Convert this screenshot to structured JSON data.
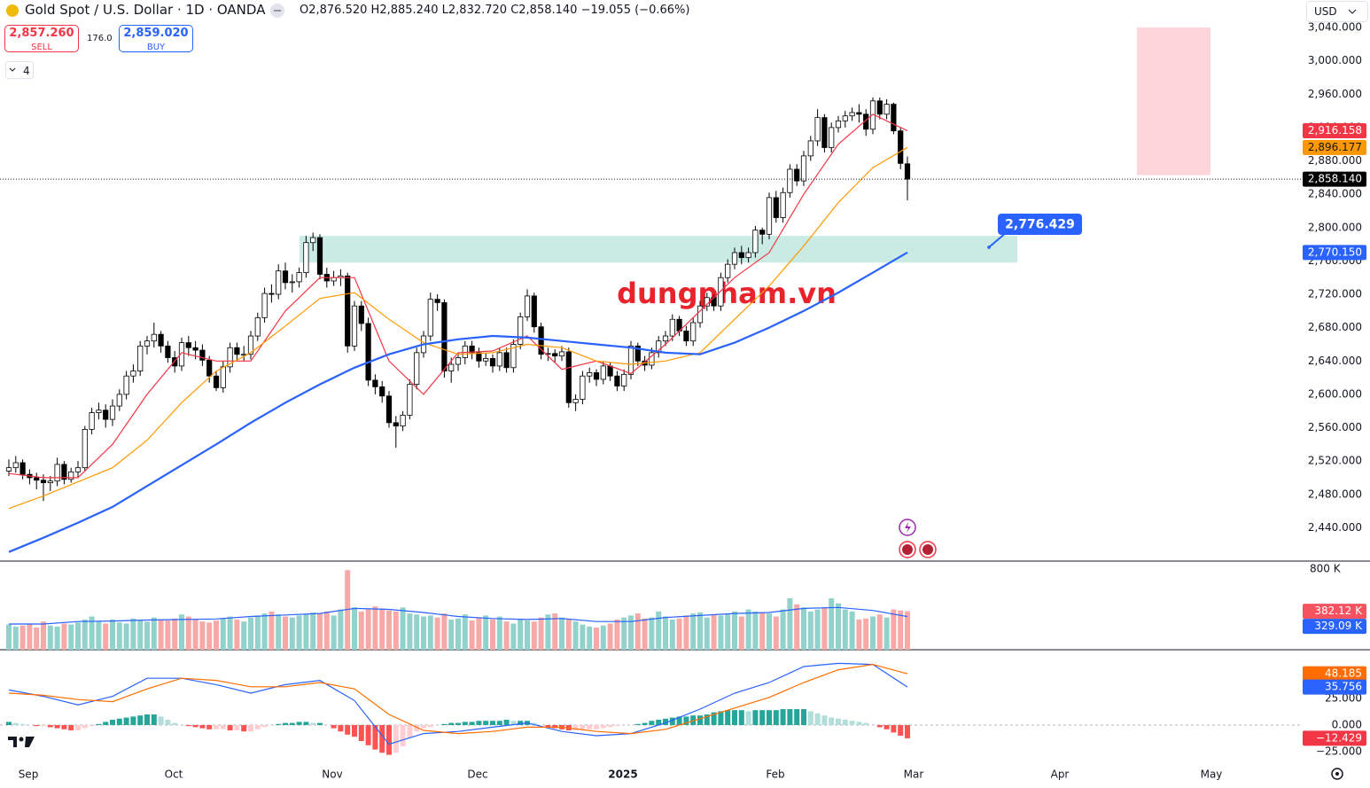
{
  "header": {
    "symbol": "Gold Spot / U.S. Dollar · 1D · OANDA",
    "o": "O",
    "open": "2,876.520",
    "h": "H",
    "high": "2,885.240",
    "l": "L",
    "low": "2,832.720",
    "c": "C",
    "close": "2,858.140",
    "change": "−19.055 (−0.66%)",
    "sell_price": "2,857.260",
    "sell": "SELL",
    "spread": "176.0",
    "buy_price": "2,859.020",
    "buy": "BUY",
    "indicators": "4",
    "currency": "USD"
  },
  "chart_data": {
    "type": "candlestick",
    "watermark": "dungpham.vn",
    "candle_up": "#ffffff",
    "candle_down": "#000000",
    "grid": false,
    "candles": [
      [
        2508,
        2522,
        2502,
        2512
      ],
      [
        2512,
        2526,
        2506,
        2518
      ],
      [
        2518,
        2522,
        2498,
        2504
      ],
      [
        2504,
        2510,
        2492,
        2500
      ],
      [
        2500,
        2506,
        2486,
        2497
      ],
      [
        2497,
        2504,
        2472,
        2494
      ],
      [
        2494,
        2502,
        2484,
        2496
      ],
      [
        2496,
        2524,
        2490,
        2516
      ],
      [
        2516,
        2520,
        2492,
        2498
      ],
      [
        2498,
        2512,
        2494,
        2507
      ],
      [
        2507,
        2520,
        2500,
        2512
      ],
      [
        2512,
        2562,
        2508,
        2558
      ],
      [
        2558,
        2584,
        2552,
        2578
      ],
      [
        2578,
        2590,
        2570,
        2581
      ],
      [
        2581,
        2588,
        2560,
        2570
      ],
      [
        2570,
        2594,
        2562,
        2586
      ],
      [
        2586,
        2606,
        2580,
        2600
      ],
      [
        2600,
        2628,
        2594,
        2622
      ],
      [
        2622,
        2636,
        2614,
        2628
      ],
      [
        2628,
        2664,
        2622,
        2658
      ],
      [
        2658,
        2670,
        2648,
        2664
      ],
      [
        2664,
        2686,
        2656,
        2672
      ],
      [
        2672,
        2676,
        2650,
        2658
      ],
      [
        2658,
        2664,
        2638,
        2644
      ],
      [
        2644,
        2652,
        2626,
        2634
      ],
      [
        2634,
        2668,
        2628,
        2662
      ],
      [
        2662,
        2670,
        2646,
        2656
      ],
      [
        2656,
        2664,
        2642,
        2653
      ],
      [
        2653,
        2660,
        2634,
        2641
      ],
      [
        2641,
        2646,
        2614,
        2622
      ],
      [
        2622,
        2628,
        2604,
        2608
      ],
      [
        2608,
        2640,
        2602,
        2633
      ],
      [
        2633,
        2662,
        2626,
        2656
      ],
      [
        2656,
        2662,
        2640,
        2648
      ],
      [
        2648,
        2658,
        2640,
        2648
      ],
      [
        2648,
        2676,
        2642,
        2670
      ],
      [
        2670,
        2698,
        2664,
        2692
      ],
      [
        2692,
        2728,
        2686,
        2721
      ],
      [
        2721,
        2732,
        2710,
        2720
      ],
      [
        2720,
        2756,
        2714,
        2748
      ],
      [
        2748,
        2758,
        2726,
        2734
      ],
      [
        2734,
        2744,
        2722,
        2735
      ],
      [
        2735,
        2752,
        2728,
        2746
      ],
      [
        2746,
        2790,
        2740,
        2782
      ],
      [
        2782,
        2794,
        2772,
        2788
      ],
      [
        2788,
        2792,
        2738,
        2744
      ],
      [
        2744,
        2752,
        2728,
        2736
      ],
      [
        2736,
        2748,
        2730,
        2740
      ],
      [
        2740,
        2750,
        2730,
        2742
      ],
      [
        2742,
        2746,
        2650,
        2658
      ],
      [
        2658,
        2712,
        2652,
        2706
      ],
      [
        2706,
        2712,
        2676,
        2685
      ],
      [
        2685,
        2692,
        2610,
        2617
      ],
      [
        2617,
        2624,
        2600,
        2609
      ],
      [
        2609,
        2616,
        2590,
        2598
      ],
      [
        2598,
        2604,
        2560,
        2566
      ],
      [
        2566,
        2574,
        2536,
        2562
      ],
      [
        2562,
        2580,
        2556,
        2575
      ],
      [
        2575,
        2618,
        2570,
        2612
      ],
      [
        2612,
        2656,
        2606,
        2650
      ],
      [
        2650,
        2676,
        2644,
        2670
      ],
      [
        2670,
        2722,
        2664,
        2714
      ],
      [
        2714,
        2720,
        2700,
        2710
      ],
      [
        2710,
        2714,
        2620,
        2628
      ],
      [
        2628,
        2644,
        2614,
        2636
      ],
      [
        2636,
        2650,
        2628,
        2644
      ],
      [
        2644,
        2664,
        2636,
        2658
      ],
      [
        2658,
        2664,
        2642,
        2650
      ],
      [
        2650,
        2656,
        2632,
        2640
      ],
      [
        2640,
        2650,
        2634,
        2643
      ],
      [
        2643,
        2648,
        2626,
        2634
      ],
      [
        2634,
        2656,
        2628,
        2650
      ],
      [
        2650,
        2656,
        2626,
        2632
      ],
      [
        2632,
        2666,
        2626,
        2660
      ],
      [
        2660,
        2698,
        2654,
        2693
      ],
      [
        2693,
        2726,
        2688,
        2718
      ],
      [
        2718,
        2722,
        2674,
        2681
      ],
      [
        2681,
        2686,
        2642,
        2648
      ],
      [
        2648,
        2656,
        2640,
        2649
      ],
      [
        2649,
        2654,
        2638,
        2646
      ],
      [
        2646,
        2658,
        2640,
        2651
      ],
      [
        2651,
        2656,
        2584,
        2590
      ],
      [
        2590,
        2600,
        2580,
        2594
      ],
      [
        2594,
        2628,
        2588,
        2622
      ],
      [
        2622,
        2632,
        2614,
        2626
      ],
      [
        2626,
        2630,
        2610,
        2618
      ],
      [
        2618,
        2640,
        2612,
        2634
      ],
      [
        2634,
        2638,
        2616,
        2622
      ],
      [
        2622,
        2628,
        2604,
        2610
      ],
      [
        2610,
        2630,
        2604,
        2624
      ],
      [
        2624,
        2664,
        2618,
        2658
      ],
      [
        2658,
        2662,
        2634,
        2640
      ],
      [
        2640,
        2646,
        2628,
        2635
      ],
      [
        2635,
        2656,
        2630,
        2650
      ],
      [
        2650,
        2670,
        2644,
        2664
      ],
      [
        2664,
        2676,
        2658,
        2670
      ],
      [
        2670,
        2696,
        2664,
        2690
      ],
      [
        2690,
        2694,
        2670,
        2676
      ],
      [
        2676,
        2682,
        2658,
        2664
      ],
      [
        2664,
        2692,
        2658,
        2686
      ],
      [
        2686,
        2712,
        2680,
        2706
      ],
      [
        2706,
        2722,
        2700,
        2716
      ],
      [
        2716,
        2720,
        2700,
        2706
      ],
      [
        2706,
        2746,
        2700,
        2740
      ],
      [
        2740,
        2762,
        2734,
        2756
      ],
      [
        2756,
        2776,
        2750,
        2770
      ],
      [
        2770,
        2778,
        2756,
        2764
      ],
      [
        2764,
        2776,
        2758,
        2770
      ],
      [
        2770,
        2802,
        2764,
        2797
      ],
      [
        2797,
        2800,
        2780,
        2792
      ],
      [
        2792,
        2842,
        2786,
        2836
      ],
      [
        2836,
        2844,
        2806,
        2812
      ],
      [
        2812,
        2848,
        2806,
        2842
      ],
      [
        2842,
        2876,
        2836,
        2870
      ],
      [
        2870,
        2876,
        2850,
        2856
      ],
      [
        2856,
        2892,
        2850,
        2886
      ],
      [
        2886,
        2910,
        2880,
        2904
      ],
      [
        2904,
        2942,
        2898,
        2932
      ],
      [
        2932,
        2936,
        2890,
        2896
      ],
      [
        2896,
        2926,
        2890,
        2920
      ],
      [
        2920,
        2934,
        2914,
        2928
      ],
      [
        2928,
        2940,
        2920,
        2934
      ],
      [
        2934,
        2944,
        2928,
        2938
      ],
      [
        2938,
        2948,
        2926,
        2936
      ],
      [
        2936,
        2942,
        2910,
        2918
      ],
      [
        2918,
        2956,
        2912,
        2952
      ],
      [
        2952,
        2956,
        2930,
        2936
      ],
      [
        2936,
        2954,
        2930,
        2948
      ],
      [
        2948,
        2950,
        2912,
        2916
      ],
      [
        2916,
        2920,
        2870,
        2877
      ],
      [
        2876.52,
        2885.24,
        2832.72,
        2858.14
      ]
    ],
    "ylim": [
      2400,
      3073
    ],
    "yticks": [
      {
        "value": 3040,
        "label": "3,040.000"
      },
      {
        "value": 3000,
        "label": "3,000.000"
      },
      {
        "value": 2960,
        "label": "2,960.000"
      },
      {
        "value": 2920,
        "label": "2,920.000"
      },
      {
        "value": 2880,
        "label": "2,880.000"
      },
      {
        "value": 2840,
        "label": "2,840.000"
      },
      {
        "value": 2800,
        "label": "2,800.000"
      },
      {
        "value": 2760,
        "label": "2,760.000"
      },
      {
        "value": 2720,
        "label": "2,720.000"
      },
      {
        "value": 2680,
        "label": "2,680.000"
      },
      {
        "value": 2640,
        "label": "2,640.000"
      },
      {
        "value": 2600,
        "label": "2,600.000"
      },
      {
        "value": 2560,
        "label": "2,560.000"
      },
      {
        "value": 2520,
        "label": "2,520.000"
      },
      {
        "value": 2480,
        "label": "2,480.000"
      },
      {
        "value": 2440,
        "label": "2,440.000"
      }
    ],
    "moving_averages": [
      {
        "color": "#f23645",
        "values": [
          2505,
          2500,
          2500,
          2540,
          2600,
          2650,
          2640,
          2640,
          2700,
          2740,
          2740,
          2640,
          2600,
          2650,
          2652,
          2670,
          2630,
          2640,
          2625,
          2660,
          2700,
          2740,
          2770,
          2840,
          2900,
          2936,
          2916.158
        ]
      },
      {
        "color": "#ff9800",
        "values": [
          2463,
          2478,
          2495,
          2512,
          2545,
          2590,
          2628,
          2650,
          2682,
          2715,
          2722,
          2690,
          2662,
          2648,
          2650,
          2660,
          2656,
          2640,
          2636,
          2640,
          2650,
          2690,
          2730,
          2778,
          2830,
          2872,
          2896.177
        ]
      },
      {
        "color": "#2962ff",
        "values": [
          2411,
          2428,
          2446,
          2465,
          2490,
          2515,
          2540,
          2566,
          2590,
          2612,
          2632,
          2648,
          2660,
          2666,
          2670,
          2668,
          2664,
          2660,
          2656,
          2650,
          2648,
          2662,
          2680,
          2700,
          2722,
          2746,
          2770.15
        ]
      }
    ],
    "last_price": {
      "value": 2858.14,
      "label": "2,858.140",
      "color": "#000000",
      "text_color": "#ffffff"
    },
    "price_labels": [
      {
        "value": 2916.158,
        "label": "2,916.158",
        "color": "#f23645",
        "text_color": "#ffffff"
      },
      {
        "value": 2896.177,
        "label": "2,896.177",
        "color": "#ff9800",
        "text_color": "#131722"
      },
      {
        "value": 2770.15,
        "label": "2,770.150",
        "color": "#2962ff",
        "text_color": "#ffffff"
      }
    ],
    "zones": [
      {
        "low": 2758,
        "high": 2790,
        "color": "#c9ebe3"
      },
      {
        "low": 2863,
        "high": 3040,
        "color": "#fcd6da"
      }
    ],
    "annotation": {
      "value": 2776.429,
      "label": "2,776.429",
      "color": "#2962ff"
    },
    "xaxis_labels": [
      "Sep",
      "Oct",
      "Nov",
      "Dec",
      "2025",
      "Feb",
      "Mar",
      "Apr",
      "May"
    ],
    "volume": {
      "ylim": [
        0,
        880
      ],
      "yticks": [
        {
          "value": 800,
          "label": "800 K"
        }
      ],
      "color_up": "#92d2cc",
      "color_down": "#f7a9a7",
      "values": [
        250,
        230,
        240,
        260,
        220,
        280,
        240,
        230,
        260,
        250,
        270,
        300,
        330,
        280,
        260,
        300,
        270,
        260,
        310,
        290,
        280,
        320,
        300,
        290,
        310,
        350,
        330,
        300,
        280,
        270,
        290,
        310,
        330,
        300,
        280,
        320,
        340,
        360,
        380,
        350,
        330,
        320,
        340,
        350,
        370,
        360,
        380,
        340,
        400,
        790,
        420,
        380,
        400,
        430,
        410,
        390,
        380,
        420,
        360,
        350,
        330,
        340,
        320,
        360,
        300,
        310,
        350,
        290,
        320,
        340,
        300,
        330,
        280,
        260,
        300,
        290,
        280,
        320,
        350,
        360,
        320,
        300,
        280,
        250,
        230,
        220,
        240,
        260,
        300,
        320,
        340,
        360,
        310,
        320,
        380,
        330,
        300,
        310,
        340,
        360,
        370,
        320,
        350,
        340,
        360,
        380,
        330,
        400,
        380,
        370,
        360,
        330,
        400,
        510,
        450,
        420,
        380,
        400,
        420,
        510,
        460,
        400,
        380,
        300,
        310,
        330,
        350,
        320,
        400,
        390,
        382.12
      ],
      "ma": {
        "color": "#2962ff",
        "values": [
          255,
          255,
          280,
          285,
          295,
          300,
          305,
          330,
          345,
          360,
          410,
          400,
          370,
          330,
          310,
          300,
          310,
          280,
          280,
          320,
          340,
          360,
          370,
          410,
          420,
          390,
          329.09
        ]
      },
      "labels": [
        {
          "value": 382.12,
          "label": "382.12 K",
          "color": "#f7525f",
          "text_color": "#ffffff"
        },
        {
          "value": 329.09,
          "label": "329.09 K",
          "color": "#2962ff",
          "text_color": "#ffffff"
        }
      ]
    },
    "macd": {
      "ylim": [
        -35,
        70.8
      ],
      "yticks": [
        {
          "value": 25,
          "label": "25.000"
        },
        {
          "value": 0,
          "label": "0.000"
        },
        {
          "value": -25,
          "label": "−25.000"
        }
      ],
      "histogram": [
        3,
        2,
        1,
        0,
        -1,
        -1,
        -2,
        -3,
        -4,
        -5,
        -5,
        -3,
        -1,
        1,
        3,
        5,
        6,
        7,
        8,
        9,
        10,
        10,
        8,
        5,
        2,
        0,
        -1,
        -2,
        -3,
        -4,
        -4,
        -4,
        -5,
        -5,
        -6,
        -6,
        -4,
        -2,
        0,
        1,
        2,
        2,
        3,
        3,
        2,
        2,
        0,
        -3,
        -6,
        -9,
        -11,
        -15,
        -19,
        -23,
        -26,
        -28,
        -26,
        -20,
        -12,
        -6,
        -3,
        -2,
        0,
        1,
        2,
        2,
        3,
        3,
        4,
        4,
        4,
        4,
        5,
        4,
        4,
        4,
        2,
        0,
        -2,
        -3,
        -4,
        -5,
        -5,
        -4,
        -4,
        -4,
        -3,
        -2,
        -1,
        0,
        0,
        1,
        2,
        4,
        5,
        6,
        7,
        8,
        8,
        9,
        9,
        10,
        12,
        13,
        14,
        14,
        14,
        13,
        14,
        14,
        14,
        14,
        15,
        15,
        15,
        15,
        13,
        11,
        9,
        7,
        6,
        5,
        4,
        3,
        2,
        0,
        -2,
        -4,
        -7,
        -10,
        -12.429
      ],
      "hist_colors": [
        "#26a69a",
        "#b2dfdb",
        "#ffcdd2",
        "#ff5252"
      ],
      "macd": {
        "color": "#2962ff",
        "values": [
          33,
          27,
          19,
          27,
          44,
          44,
          38,
          30,
          38,
          42,
          23,
          -18,
          -8,
          -6,
          -2,
          2,
          -6,
          -10,
          -8,
          2,
          15,
          30,
          40,
          55,
          58,
          57,
          35.756
        ]
      },
      "signal": {
        "color": "#ff6d00",
        "values": [
          30,
          28,
          24,
          22,
          34,
          44,
          42,
          36,
          36,
          40,
          34,
          10,
          -5,
          -8,
          -6,
          -2,
          -2,
          -6,
          -8,
          -4,
          6,
          16,
          26,
          40,
          52,
          57,
          48.185
        ]
      },
      "labels": [
        {
          "value": 48.185,
          "label": "48.185",
          "color": "#ff6d00",
          "text_color": "#ffffff"
        },
        {
          "value": 35.756,
          "label": "35.756",
          "color": "#2962ff",
          "text_color": "#ffffff"
        },
        {
          "value": -12.429,
          "label": "−12.429",
          "color": "#f23645",
          "text_color": "#ffffff"
        }
      ]
    }
  }
}
